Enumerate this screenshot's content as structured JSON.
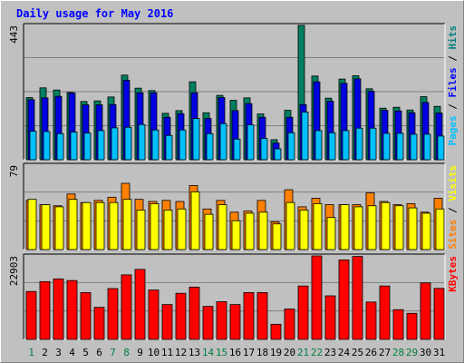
{
  "title": "Daily usage for May 2016",
  "chart_data": {
    "type": "bar",
    "title": "Daily usage for May 2016",
    "x": [
      "1",
      "2",
      "3",
      "4",
      "5",
      "6",
      "7",
      "8",
      "9",
      "10",
      "11",
      "12",
      "13",
      "14",
      "15",
      "16",
      "17",
      "18",
      "19",
      "20",
      "21",
      "22",
      "23",
      "24",
      "25",
      "26",
      "27",
      "28",
      "29",
      "30",
      "31"
    ],
    "x_label_colors": {
      "weekday": "#00805c",
      "weekend": "#008040"
    },
    "weekend_days": [
      1,
      7,
      8,
      14,
      15,
      21,
      22,
      28,
      29
    ],
    "panels": [
      {
        "scale_label": "443",
        "ymax": 443,
        "ylabel_parts": [
          {
            "text": "Pages",
            "color": "#00c0ff"
          },
          {
            "text": " / ",
            "color": "#000000"
          },
          {
            "text": "Files",
            "color": "#0000ff"
          },
          {
            "text": " / ",
            "color": "#000000"
          },
          {
            "text": "Hits",
            "color": "#008080"
          }
        ],
        "series": [
          {
            "name": "Hits",
            "color": "#008060",
            "values": [
              205,
              237,
              230,
              222,
              192,
              194,
              207,
              279,
              236,
              228,
              153,
              162,
              257,
              155,
              212,
              196,
              204,
              151,
              66,
              163,
              443,
              276,
              203,
              266,
              277,
              234,
              170,
              173,
              164,
              208,
              176
            ]
          },
          {
            "name": "Files",
            "color": "#0000e0",
            "values": [
              198,
              204,
              209,
              220,
              181,
              181,
              182,
              262,
              221,
              221,
              140,
              152,
              221,
              136,
              205,
              162,
              185,
              140,
              55,
              140,
              182,
              257,
              193,
              252,
              267,
              226,
              163,
              161,
              155,
              189,
              154
            ]
          },
          {
            "name": "Pages",
            "color": "#00c0ff",
            "values": [
              94,
              93,
              86,
              91,
              88,
              96,
              105,
              107,
              116,
              98,
              80,
              98,
              136,
              86,
              119,
              68,
              115,
              70,
              36,
              89,
              157,
              96,
              89,
              96,
              104,
              104,
              87,
              87,
              84,
              84,
              78
            ]
          }
        ]
      },
      {
        "scale_label": "79",
        "ymax": 79,
        "ylabel_parts": [
          {
            "text": "Sites",
            "color": "#ff8000"
          },
          {
            "text": " / ",
            "color": "#000000"
          },
          {
            "text": "Visits",
            "color": "#ffff00"
          }
        ],
        "series": [
          {
            "name": "Sites",
            "color": "#ff8000",
            "values": [
              46,
              42,
              41,
              52,
              44,
              46,
              49,
              62,
              47,
              45,
              46,
              45,
              60,
              38,
              46,
              35,
              36,
              46,
              26,
              56,
              40,
              48,
              42,
              42,
              42,
              53,
              45,
              42,
              43,
              35,
              48
            ]
          },
          {
            "name": "Visits",
            "color": "#ffff00",
            "values": [
              47,
              42,
              40,
              47,
              44,
              44,
              44,
              47,
              37,
              43,
              37,
              38,
              54,
              33,
              42,
              27,
              34,
              35,
              24,
              44,
              37,
              43,
              30,
              42,
              40,
              41,
              44,
              41,
              39,
              34,
              38
            ]
          }
        ]
      },
      {
        "scale_label": "22903",
        "ymax": 22903,
        "ylabel_parts": [
          {
            "text": "KBytes",
            "color": "#ff0000"
          }
        ],
        "series": [
          {
            "name": "KBytes",
            "color": "#ff0000",
            "values": [
              13150,
              15850,
              16600,
              16150,
              12850,
              8800,
              13950,
              17700,
              19200,
              13550,
              9550,
              12650,
              14350,
              9050,
              10350,
              9550,
              12850,
              12850,
              4150,
              8350,
              14650,
              22903,
              11950,
              21800,
              22750,
              10250,
              14650,
              8150,
              7150,
              15500,
              14000
            ]
          }
        ]
      }
    ]
  }
}
